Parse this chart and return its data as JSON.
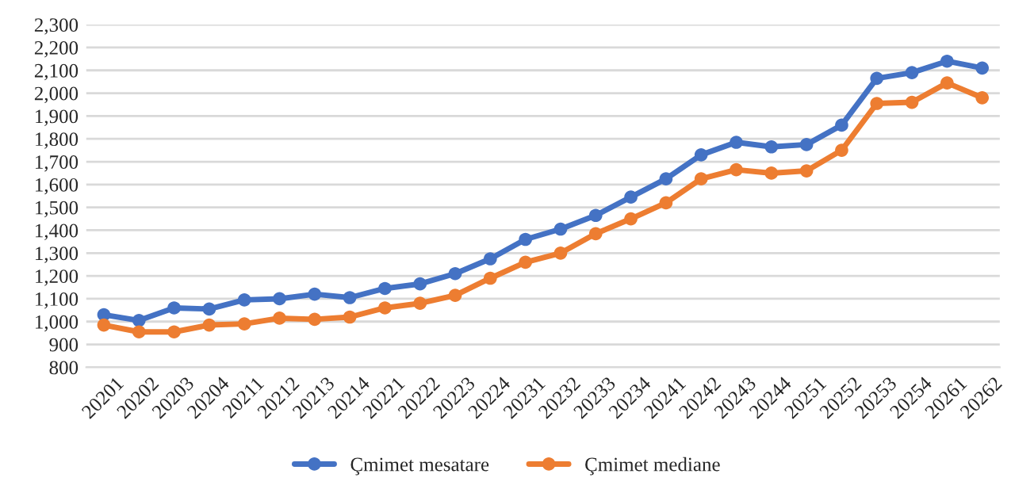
{
  "chart_data": {
    "type": "line",
    "categories": [
      "20201",
      "20202",
      "20203",
      "20204",
      "20211",
      "20212",
      "20213",
      "20214",
      "20221",
      "20222",
      "20223",
      "20224",
      "20231",
      "20232",
      "20233",
      "20234",
      "20241",
      "20242",
      "20243",
      "20244",
      "20251",
      "20252",
      "20253",
      "20254",
      "20261",
      "20262"
    ],
    "series": [
      {
        "name": "Çmimet mesatare",
        "color": "#4472c4",
        "values": [
          1030,
          1005,
          1060,
          1055,
          1095,
          1100,
          1120,
          1105,
          1145,
          1165,
          1210,
          1275,
          1360,
          1405,
          1465,
          1545,
          1625,
          1730,
          1785,
          1765,
          1775,
          1860,
          2065,
          2090,
          2140,
          2110
        ]
      },
      {
        "name": "Çmimet mediane",
        "color": "#ed7d31",
        "values": [
          985,
          955,
          955,
          985,
          990,
          1015,
          1010,
          1020,
          1060,
          1080,
          1115,
          1190,
          1260,
          1300,
          1385,
          1450,
          1520,
          1625,
          1665,
          1650,
          1660,
          1750,
          1955,
          1960,
          2045,
          1980
        ]
      }
    ],
    "ylim": [
      800,
      2300
    ],
    "yticks": [
      {
        "value": 800,
        "label": "800"
      },
      {
        "value": 900,
        "label": "900"
      },
      {
        "value": 1000,
        "label": "1,000"
      },
      {
        "value": 1100,
        "label": "1,100"
      },
      {
        "value": 1200,
        "label": "1,200"
      },
      {
        "value": 1300,
        "label": "1,300"
      },
      {
        "value": 1400,
        "label": "1,400"
      },
      {
        "value": 1500,
        "label": "1,500"
      },
      {
        "value": 1600,
        "label": "1,600"
      },
      {
        "value": 1700,
        "label": "1,700"
      },
      {
        "value": 1800,
        "label": "1,800"
      },
      {
        "value": 1900,
        "label": "1,900"
      },
      {
        "value": 2000,
        "label": "2,000"
      },
      {
        "value": 2100,
        "label": "2,100"
      },
      {
        "value": 2200,
        "label": "2,200"
      },
      {
        "value": 2300,
        "label": "2,300"
      }
    ],
    "grid": "y",
    "legend": "bottom",
    "marker": "circle",
    "line_style": "solid"
  }
}
